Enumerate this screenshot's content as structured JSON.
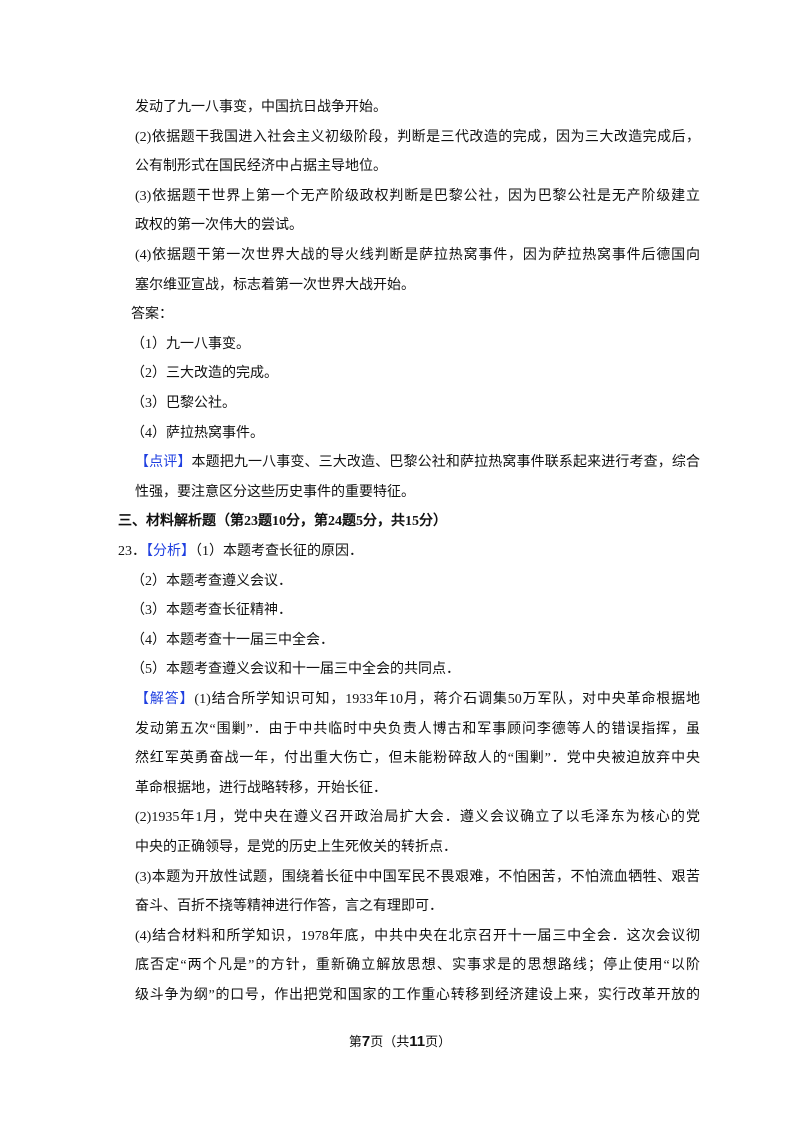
{
  "lines": [
    {
      "text": "发动了九一八事变，中国抗日战争开始。",
      "x": "body",
      "j": false
    },
    {
      "text": "(2)依据题干我国进入社会主义初级阶段，判断是三代改造的完成，因为三大改造完成后，",
      "x": "body",
      "j": true
    },
    {
      "text": "公有制形式在国民经济中占据主导地位。",
      "x": "body",
      "j": false
    },
    {
      "text": "(3)依据题干世界上第一个无产阶级政权判断是巴黎公社，因为巴黎公社是无产阶级建立",
      "x": "body",
      "j": true
    },
    {
      "text": "政权的第一次伟大的尝试。",
      "x": "body",
      "j": false
    },
    {
      "text": "(4)依据题干第一次世界大战的导火线判断是萨拉热窝事件，因为萨拉热窝事件后德国向",
      "x": "body",
      "j": true
    },
    {
      "text": "塞尔维亚宣战，标志着第一次世界大战开始。",
      "x": "body",
      "j": false
    },
    {
      "text": "答案：",
      "x": "item",
      "j": false
    },
    {
      "text": "（1）九一八事变。",
      "x": "item",
      "j": false
    },
    {
      "text": "（2）三大改造的完成。",
      "x": "item",
      "j": false
    },
    {
      "text": "（3）巴黎公社。",
      "x": "item",
      "j": false
    },
    {
      "text": "（4）萨拉热窝事件。",
      "x": "item",
      "j": false
    },
    {
      "label": "【点评】",
      "text": "本题把九一八事变、三大改造、巴黎公社和萨拉热窝事件联系起来进行考查，综合",
      "x": "body",
      "j": true
    },
    {
      "text": "性强，要注意区分这些历史事件的重要特征。",
      "x": "body",
      "j": false
    },
    {
      "text": "三、材料解析题（第23题10分，第24题5分，共15分）",
      "x": "outer",
      "j": false,
      "bold": true
    },
    {
      "prefix": "23．",
      "label": "【分析】",
      "text": "（1）本题考查长征的原因．",
      "x": "outer",
      "j": false
    },
    {
      "text": "（2）本题考查遵义会议．",
      "x": "item",
      "j": false
    },
    {
      "text": "（3）本题考查长征精神．",
      "x": "item",
      "j": false
    },
    {
      "text": "（4）本题考查十一届三中全会．",
      "x": "item",
      "j": false
    },
    {
      "text": "（5）本题考查遵义会议和十一届三中全会的共同点．",
      "x": "item",
      "j": false
    },
    {
      "label": "【解答】",
      "text": "(1)结合所学知识可知，1933年10月，蒋介石调集50万军队，对中央革命根据地",
      "x": "body",
      "j": true
    },
    {
      "text": "发动第五次“围剿”．由于中共临时中央负责人博古和军事顾问李德等人的错误指挥，虽",
      "x": "body",
      "j": true
    },
    {
      "text": "然红军英勇奋战一年，付出重大伤亡，但未能粉碎敌人的“围剿”．党中央被迫放弃中央",
      "x": "body",
      "j": true
    },
    {
      "text": "革命根据地，进行战略转移，开始长征．",
      "x": "body",
      "j": false
    },
    {
      "text": "(2)1935年1月，党中央在遵义召开政治局扩大会．遵义会议确立了以毛泽东为核心的党",
      "x": "body",
      "j": true
    },
    {
      "text": "中央的正确领导，是党的历史上生死攸关的转折点．",
      "x": "body",
      "j": false
    },
    {
      "text": "(3)本题为开放性试题，围绕着长征中中国军民不畏艰难，不怕困苦，不怕流血牺牲、艰苦",
      "x": "body",
      "j": true
    },
    {
      "text": "奋斗、百折不挠等精神进行作答，言之有理即可．",
      "x": "body",
      "j": false
    },
    {
      "text": "(4)结合材料和所学知识，1978年底，中共中央在北京召开十一届三中全会．这次会议彻",
      "x": "body",
      "j": true
    },
    {
      "text": "底否定“两个凡是”的方针，重新确立解放思想、实事求是的思想路线；停止使用“以阶",
      "x": "body",
      "j": true
    },
    {
      "text": "级斗争为纲”的口号，作出把党和国家的工作重心转移到经济建设上来，实行改革开放的",
      "x": "body",
      "j": true
    }
  ],
  "footer": {
    "pre": "第",
    "page": "7",
    "mid": "页（共",
    "total": "11",
    "post": "页）"
  },
  "colors": {
    "label": "#1f3fe0",
    "text": "#111111"
  }
}
